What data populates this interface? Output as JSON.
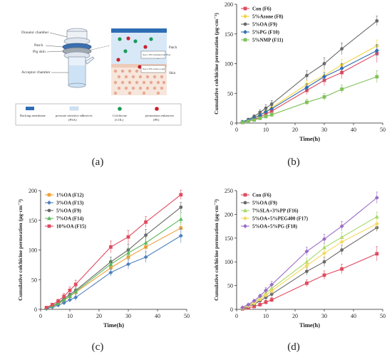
{
  "panel_labels": [
    "(a)",
    "(b)",
    "(c)",
    "(d)"
  ],
  "schematic": {
    "labels": {
      "donator": "Donator chamber",
      "patch": "Patch",
      "pig_skin": "Pig skin",
      "acceptor": "Acceptor chamber",
      "patch_side": "Patch",
      "skin_side": "Skin",
      "step1": "Step 1: PEs releasing from PSAs",
      "step2": "Step 2: PEs acting on skin"
    },
    "legend": [
      {
        "label": "Backing membrane",
        "sublabel": "",
        "icon": "dark-blue-rect",
        "color": "#2e6db4"
      },
      {
        "label": "pressure sensitive adhesives",
        "sublabel": "(PSA)",
        "icon": "light-blue-rect",
        "color": "#cfe2f3"
      },
      {
        "label": "Colchicine",
        "sublabel": "(COL)",
        "icon": "green-dot",
        "color": "#1a9a5a"
      },
      {
        "label": "permeation enhancers",
        "sublabel": "(PE)",
        "icon": "red-dot",
        "color": "#c8202e"
      }
    ]
  },
  "chart_data": [
    {
      "type": "line",
      "panel": "b",
      "xlabel": "Time(h)",
      "ylabel": "Cumulative colchicine permeation (μg·cm⁻²)",
      "xlim": [
        0,
        50
      ],
      "ylim": [
        0,
        200
      ],
      "xticks": [
        0,
        10,
        20,
        30,
        40,
        50
      ],
      "yticks": [
        0,
        50,
        100,
        150,
        200
      ],
      "x": [
        2,
        4,
        6,
        8,
        10,
        12,
        24,
        30,
        36,
        48
      ],
      "legend_position": "top-left",
      "series": [
        {
          "name": "Con (F6)",
          "color": "#e04a5f",
          "marker": "square",
          "values": [
            1,
            3,
            6,
            10,
            15,
            20,
            55,
            72,
            85,
            117
          ],
          "err": [
            1,
            1,
            2,
            3,
            4,
            5,
            7,
            9,
            10,
            15
          ]
        },
        {
          "name": "5%Azone (F8)",
          "color": "#f2d33c",
          "marker": "diamond",
          "values": [
            2,
            5,
            9,
            14,
            20,
            26,
            65,
            80,
            98,
            130
          ],
          "err": [
            1,
            1,
            2,
            3,
            4,
            5,
            6,
            8,
            9,
            10
          ]
        },
        {
          "name": "5%OA (F9)",
          "color": "#6a6a6a",
          "marker": "circle",
          "values": [
            2,
            6,
            11,
            18,
            25,
            32,
            80,
            100,
            125,
            172
          ],
          "err": [
            1,
            2,
            3,
            4,
            6,
            6,
            8,
            10,
            10,
            8
          ]
        },
        {
          "name": "5%PG (F10)",
          "color": "#2e6db4",
          "marker": "diamond",
          "values": [
            2,
            5,
            8,
            13,
            19,
            24,
            60,
            78,
            92,
            122
          ],
          "err": [
            1,
            1,
            2,
            3,
            4,
            5,
            6,
            7,
            8,
            10
          ]
        },
        {
          "name": "5%NMP (F11)",
          "color": "#7fc25a",
          "marker": "square",
          "values": [
            1,
            3,
            5,
            8,
            11,
            14,
            35,
            44,
            57,
            78
          ],
          "err": [
            1,
            1,
            1,
            2,
            3,
            4,
            5,
            6,
            7,
            10
          ]
        }
      ]
    },
    {
      "type": "line",
      "panel": "c",
      "xlabel": "Time(h)",
      "ylabel": "Cumulative colchicine permeation (μg·cm⁻²)",
      "xlim": [
        0,
        50
      ],
      "ylim": [
        0,
        200
      ],
      "xticks": [
        0,
        10,
        20,
        30,
        40,
        50
      ],
      "yticks": [
        0,
        50,
        100,
        150,
        200
      ],
      "x": [
        2,
        4,
        6,
        8,
        10,
        12,
        24,
        30,
        36,
        48
      ],
      "legend_position": "top-left",
      "series": [
        {
          "name": "1%OA (F12)",
          "color": "#f0a23a",
          "marker": "square",
          "values": [
            2,
            5,
            9,
            15,
            22,
            29,
            70,
            88,
            105,
            137
          ],
          "err": [
            1,
            1,
            2,
            3,
            4,
            5,
            6,
            8,
            9,
            10
          ]
        },
        {
          "name": "3%OA (F13)",
          "color": "#4f81bd",
          "marker": "diamond",
          "values": [
            1,
            4,
            7,
            11,
            16,
            20,
            62,
            76,
            88,
            124
          ],
          "err": [
            1,
            1,
            2,
            3,
            4,
            5,
            6,
            8,
            9,
            12
          ]
        },
        {
          "name": "5%OA (F9)",
          "color": "#6a6a6a",
          "marker": "circle",
          "values": [
            2,
            6,
            11,
            18,
            25,
            32,
            80,
            100,
            125,
            172
          ],
          "err": [
            1,
            2,
            3,
            4,
            6,
            6,
            8,
            10,
            10,
            8
          ]
        },
        {
          "name": "7%OA (F14)",
          "color": "#5cb85c",
          "marker": "triangle",
          "values": [
            2,
            6,
            10,
            16,
            22,
            30,
            76,
            95,
            112,
            152
          ],
          "err": [
            1,
            1,
            2,
            3,
            4,
            5,
            7,
            8,
            9,
            11
          ]
        },
        {
          "name": "10%OA (F15)",
          "color": "#e04a5f",
          "marker": "square",
          "values": [
            3,
            8,
            14,
            22,
            32,
            42,
            105,
            122,
            147,
            193
          ],
          "err": [
            1,
            2,
            3,
            5,
            6,
            7,
            10,
            11,
            9,
            8
          ]
        }
      ]
    },
    {
      "type": "line",
      "panel": "d",
      "xlabel": "Time(h)",
      "ylabel": "Cumulative colchicine permeation (μg·cm⁻²)",
      "xlim": [
        0,
        50
      ],
      "ylim": [
        0,
        250
      ],
      "xticks": [
        0,
        10,
        20,
        30,
        40,
        50
      ],
      "yticks": [
        0,
        50,
        100,
        150,
        200,
        250
      ],
      "x": [
        2,
        4,
        6,
        8,
        10,
        12,
        24,
        30,
        36,
        48
      ],
      "legend_position": "top-left",
      "series": [
        {
          "name": "Con (F6)",
          "color": "#e04a5f",
          "marker": "square",
          "values": [
            1,
            3,
            6,
            10,
            15,
            20,
            55,
            72,
            85,
            117
          ],
          "err": [
            1,
            1,
            2,
            3,
            4,
            5,
            7,
            9,
            10,
            15
          ]
        },
        {
          "name": "5%OA (F9)",
          "color": "#6a6a6a",
          "marker": "circle",
          "values": [
            2,
            6,
            11,
            18,
            25,
            32,
            80,
            100,
            125,
            172
          ],
          "err": [
            1,
            2,
            3,
            4,
            6,
            6,
            8,
            10,
            10,
            8
          ]
        },
        {
          "name": "7%SLA+3%PP (F16)",
          "color": "#a6d96a",
          "marker": "triangle",
          "values": [
            3,
            8,
            15,
            24,
            34,
            44,
            100,
            130,
            152,
            195
          ],
          "err": [
            1,
            2,
            3,
            4,
            5,
            6,
            8,
            9,
            10,
            10
          ]
        },
        {
          "name": "5%OA+5%PEG400 (F17)",
          "color": "#f6d860",
          "marker": "diamond",
          "values": [
            3,
            7,
            13,
            21,
            30,
            39,
            92,
            118,
            142,
            180
          ],
          "err": [
            1,
            2,
            3,
            4,
            5,
            6,
            8,
            9,
            10,
            10
          ]
        },
        {
          "name": "5%OA+5%PG (F18)",
          "color": "#9b6cc7",
          "marker": "diamond",
          "values": [
            4,
            10,
            18,
            28,
            40,
            52,
            122,
            148,
            175,
            235
          ],
          "err": [
            1,
            2,
            3,
            4,
            6,
            7,
            9,
            10,
            10,
            12
          ]
        }
      ]
    }
  ]
}
